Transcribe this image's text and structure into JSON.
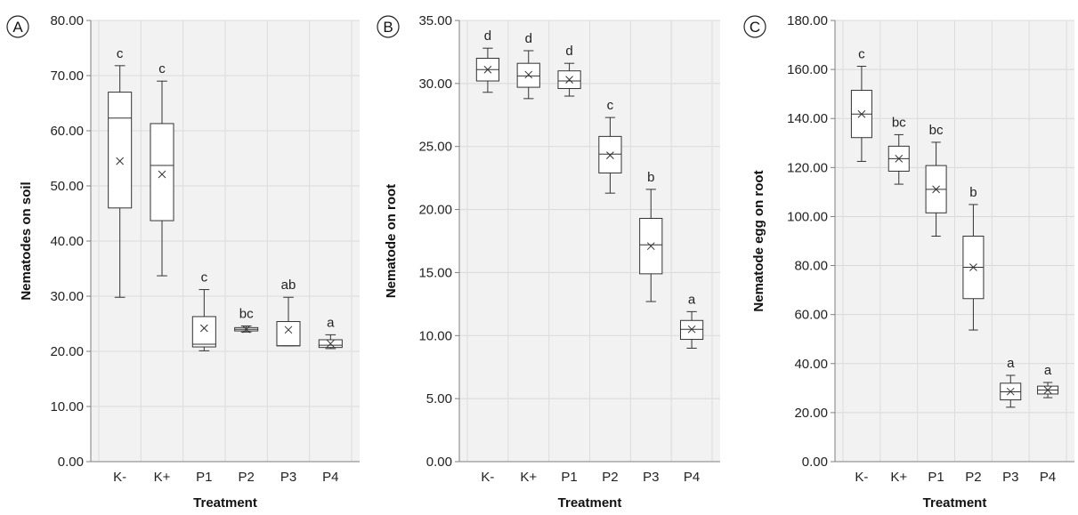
{
  "chart_data": [
    {
      "type": "box",
      "panel_label": "A",
      "ylabel": "Nematodes on soil",
      "xlabel": "Treatment",
      "categories": [
        "K-",
        "K+",
        "P1",
        "P2",
        "P3",
        "P4"
      ],
      "ylim": [
        0,
        80
      ],
      "yticks": [
        "0.00",
        "10.00",
        "20.00",
        "30.00",
        "40.00",
        "50.00",
        "60.00",
        "70.00",
        "80.00"
      ],
      "boxes": [
        {
          "min": 29.8,
          "q1": 46.0,
          "median": 62.3,
          "q3": 67.0,
          "max": 71.8,
          "mean": 54.5
        },
        {
          "min": 33.7,
          "q1": 43.7,
          "median": 53.7,
          "q3": 61.3,
          "max": 69.0,
          "mean": 52.1
        },
        {
          "min": 20.1,
          "q1": 20.8,
          "median": 21.3,
          "q3": 26.3,
          "max": 31.2,
          "mean": 24.2
        },
        {
          "min": 23.5,
          "q1": 23.7,
          "median": 24.0,
          "q3": 24.3,
          "max": 24.6,
          "mean": 24.0
        },
        {
          "min": 21.0,
          "q1": 21.0,
          "median": 21.0,
          "q3": 25.4,
          "max": 29.8,
          "mean": 23.9
        },
        {
          "min": 20.5,
          "q1": 20.7,
          "median": 21.1,
          "q3": 22.1,
          "max": 23.0,
          "mean": 21.4
        }
      ],
      "significance": [
        "c",
        "c",
        "c",
        "bc",
        "ab",
        "a"
      ]
    },
    {
      "type": "box",
      "panel_label": "B",
      "ylabel": "Nematode on root",
      "xlabel": "Treatment",
      "categories": [
        "K-",
        "K+",
        "P1",
        "P2",
        "P3",
        "P4"
      ],
      "ylim": [
        0,
        35
      ],
      "yticks": [
        "0.00",
        "5.00",
        "10.00",
        "15.00",
        "20.00",
        "25.00",
        "30.00",
        "35.00"
      ],
      "boxes": [
        {
          "min": 29.3,
          "q1": 30.2,
          "median": 31.1,
          "q3": 32.0,
          "max": 32.8,
          "mean": 31.1
        },
        {
          "min": 28.8,
          "q1": 29.7,
          "median": 30.6,
          "q3": 31.6,
          "max": 32.6,
          "mean": 30.7
        },
        {
          "min": 29.0,
          "q1": 29.6,
          "median": 30.2,
          "q3": 31.0,
          "max": 31.6,
          "mean": 30.3
        },
        {
          "min": 21.3,
          "q1": 22.9,
          "median": 24.4,
          "q3": 25.8,
          "max": 27.3,
          "mean": 24.3
        },
        {
          "min": 12.7,
          "q1": 14.9,
          "median": 17.2,
          "q3": 19.3,
          "max": 21.6,
          "mean": 17.1
        },
        {
          "min": 9.0,
          "q1": 9.7,
          "median": 10.5,
          "q3": 11.2,
          "max": 11.9,
          "mean": 10.5
        }
      ],
      "significance": [
        "d",
        "d",
        "d",
        "c",
        "b",
        "a"
      ]
    },
    {
      "type": "box",
      "panel_label": "C",
      "ylabel": "Nematode egg on root",
      "xlabel": "Treatment",
      "categories": [
        "K-",
        "K+",
        "P1",
        "P2",
        "P3",
        "P4"
      ],
      "ylim": [
        0,
        180
      ],
      "yticks": [
        "0.00",
        "20.00",
        "40.00",
        "60.00",
        "80.00",
        "100.00",
        "120.00",
        "140.00",
        "160.00",
        "180.00"
      ],
      "boxes": [
        {
          "min": 122.5,
          "q1": 132.2,
          "median": 141.8,
          "q3": 151.5,
          "max": 161.3,
          "mean": 141.8
        },
        {
          "min": 113.2,
          "q1": 118.5,
          "median": 123.6,
          "q3": 128.7,
          "max": 133.4,
          "mean": 123.6
        },
        {
          "min": 92.0,
          "q1": 101.5,
          "median": 111.1,
          "q3": 120.8,
          "max": 130.3,
          "mean": 111.1
        },
        {
          "min": 53.7,
          "q1": 66.5,
          "median": 79.3,
          "q3": 92.0,
          "max": 104.9,
          "mean": 79.3
        },
        {
          "min": 22.2,
          "q1": 25.2,
          "median": 28.5,
          "q3": 32.0,
          "max": 35.2,
          "mean": 28.6
        },
        {
          "min": 26.1,
          "q1": 27.6,
          "median": 29.2,
          "q3": 30.8,
          "max": 32.3,
          "mean": 29.2
        }
      ],
      "significance": [
        "c",
        "bc",
        "bc",
        "b",
        "a",
        "a"
      ]
    }
  ]
}
